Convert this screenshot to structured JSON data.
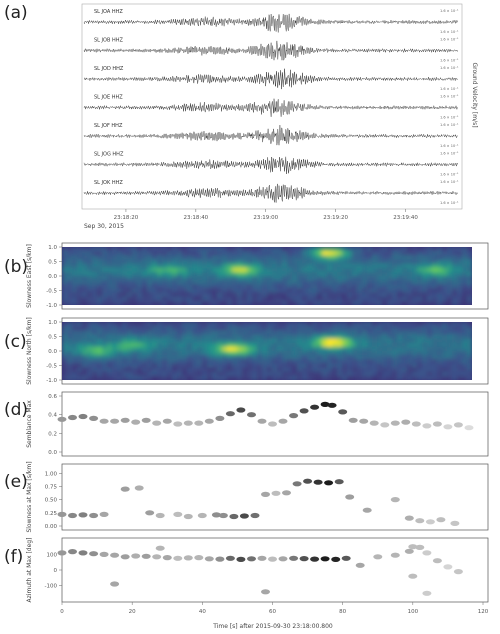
{
  "panel_labels": [
    "(a)",
    "(b)",
    "(c)",
    "(d)",
    "(e)",
    "(f)"
  ],
  "colors": {
    "trace": "#2b2b2b",
    "axis": "#444444",
    "tick_text": "#555555",
    "viridis_low": "#440154",
    "viridis_high": "#fde725"
  },
  "chart_data": [
    {
      "panel": "(a)",
      "type": "line",
      "title": "",
      "ylabel": "Ground Velocity [m/s]",
      "date_label": "Sep 30, 2015",
      "x_tick_labels": [
        "23:18:20",
        "23:18:40",
        "23:19:00",
        "23:19:20",
        "23:19:40"
      ],
      "scale_label": "1.6 × 10⁻¹",
      "series": [
        {
          "name": "SL JOA HHZ",
          "signal_peak_time": "23:19:04"
        },
        {
          "name": "SL JOB HHZ",
          "signal_peak_time": "23:19:04"
        },
        {
          "name": "SL JOD HHZ",
          "signal_peak_time": "23:19:05"
        },
        {
          "name": "SL JOE HHZ",
          "signal_peak_time": "23:19:03"
        },
        {
          "name": "SL JOF HHZ",
          "signal_peak_time": "23:19:04"
        },
        {
          "name": "SL JOG HHZ",
          "signal_peak_time": "23:19:05"
        },
        {
          "name": "SL JOK HHZ",
          "signal_peak_time": "23:19:04"
        }
      ]
    },
    {
      "panel": "(b)",
      "type": "heatmap",
      "ylabel": "Slowness East [s/km]",
      "x_range": [
        0,
        115
      ],
      "ylim": [
        -1.0,
        1.0
      ],
      "y_ticks": [
        "1.0",
        "0.5",
        "0.0",
        "-0.5",
        "-1.0"
      ],
      "hotspots": [
        {
          "x": 75,
          "y": 0.8,
          "intensity": 1.0
        },
        {
          "x": 50,
          "y": 0.2,
          "intensity": 0.7
        },
        {
          "x": 30,
          "y": 0.2,
          "intensity": 0.4
        },
        {
          "x": 105,
          "y": 0.2,
          "intensity": 0.45
        }
      ]
    },
    {
      "panel": "(c)",
      "type": "heatmap",
      "ylabel": "Slowness North [s/km]",
      "x_range": [
        0,
        115
      ],
      "ylim": [
        -1.0,
        1.0
      ],
      "y_ticks": [
        "1.0",
        "0.5",
        "0.0",
        "-0.5",
        "-1.0"
      ],
      "hotspots": [
        {
          "x": 76,
          "y": 0.3,
          "intensity": 1.0
        },
        {
          "x": 48,
          "y": 0.05,
          "intensity": 0.8
        },
        {
          "x": 10,
          "y": 0.0,
          "intensity": 0.45
        },
        {
          "x": 20,
          "y": 0.2,
          "intensity": 0.4
        }
      ]
    },
    {
      "panel": "(d)",
      "type": "scatter",
      "ylabel": "Semblance Max",
      "ylim": [
        0.0,
        0.6
      ],
      "y_ticks": [
        "0.6",
        "0.4",
        "0.2",
        "0.0"
      ],
      "x": [
        0,
        3,
        6,
        9,
        12,
        15,
        18,
        21,
        24,
        27,
        30,
        33,
        36,
        39,
        42,
        45,
        48,
        51,
        54,
        57,
        60,
        63,
        66,
        69,
        72,
        75,
        77,
        80,
        83,
        86,
        89,
        92,
        95,
        98,
        101,
        104,
        107,
        110,
        113,
        116
      ],
      "y": [
        0.35,
        0.37,
        0.38,
        0.36,
        0.33,
        0.33,
        0.34,
        0.32,
        0.34,
        0.31,
        0.33,
        0.3,
        0.31,
        0.31,
        0.33,
        0.36,
        0.41,
        0.45,
        0.4,
        0.33,
        0.3,
        0.33,
        0.39,
        0.44,
        0.48,
        0.51,
        0.5,
        0.43,
        0.34,
        0.33,
        0.31,
        0.29,
        0.31,
        0.32,
        0.3,
        0.28,
        0.3,
        0.27,
        0.29,
        0.26
      ]
    },
    {
      "panel": "(e)",
      "type": "scatter",
      "ylabel": "Slowness at Max [s/km]",
      "ylim": [
        0.0,
        1.1
      ],
      "y_ticks": [
        "1.00",
        "0.75",
        "0.50",
        "0.25",
        "0.00"
      ],
      "x": [
        0,
        3,
        6,
        9,
        12,
        18,
        22,
        25,
        28,
        33,
        36,
        40,
        44,
        46,
        49,
        52,
        55,
        58,
        61,
        64,
        67,
        70,
        73,
        76,
        79,
        82,
        87,
        95,
        99,
        102,
        105,
        108,
        112
      ],
      "y": [
        0.22,
        0.2,
        0.21,
        0.2,
        0.22,
        0.7,
        0.72,
        0.25,
        0.2,
        0.22,
        0.18,
        0.2,
        0.21,
        0.2,
        0.18,
        0.19,
        0.2,
        0.6,
        0.62,
        0.63,
        0.8,
        0.85,
        0.83,
        0.82,
        0.84,
        0.55,
        0.3,
        0.5,
        0.15,
        0.1,
        0.08,
        0.12,
        0.05
      ]
    },
    {
      "panel": "(f)",
      "type": "scatter",
      "ylabel": "Azimuth at Max [deg]",
      "xlabel": "Time [s] after 2015-09-30 23:18:00.800",
      "xlim": [
        0,
        120
      ],
      "x_ticks": [
        "0",
        "20",
        "40",
        "60",
        "80",
        "100",
        "120"
      ],
      "ylim": [
        -180,
        180
      ],
      "y_ticks": [
        "100",
        "0",
        "-100"
      ],
      "x": [
        0,
        3,
        6,
        9,
        12,
        15,
        18,
        21,
        24,
        27,
        30,
        33,
        36,
        39,
        42,
        45,
        48,
        51,
        54,
        57,
        60,
        63,
        66,
        69,
        72,
        75,
        78,
        81,
        85,
        90,
        95,
        99,
        100,
        102,
        104,
        107,
        110,
        113,
        15,
        28,
        58,
        100,
        104
      ],
      "y": [
        110,
        118,
        110,
        105,
        100,
        95,
        85,
        90,
        88,
        85,
        80,
        75,
        78,
        80,
        72,
        70,
        75,
        68,
        72,
        75,
        70,
        72,
        75,
        73,
        70,
        72,
        68,
        75,
        30,
        85,
        95,
        120,
        150,
        145,
        110,
        60,
        20,
        -10,
        -90,
        140,
        -140,
        -40,
        -150
      ]
    }
  ]
}
